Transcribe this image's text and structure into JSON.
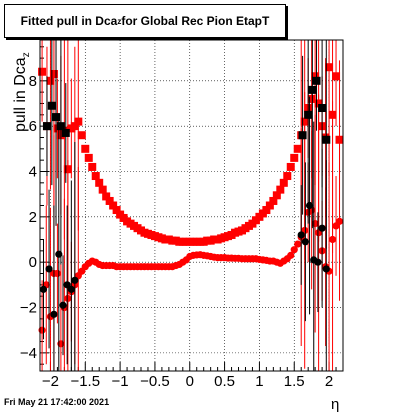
{
  "title": {
    "prefix": "Fitted pull in Dca",
    "sub": "z",
    "suffix": " for Global Rec Pion EtapT"
  },
  "footer": "Fri May 21 17:42:00 2021",
  "chart_data": {
    "type": "scatter",
    "title": "Fitted pull in Dca_z for Global Rec Pion EtapT",
    "xlabel": "η",
    "ylabel": "pull in Dca_z",
    "xlim": [
      -2.15,
      2.2
    ],
    "ylim": [
      -4.8,
      9.8
    ],
    "xticks": [
      -2,
      -1.5,
      -1,
      -0.5,
      0,
      0.5,
      1,
      1.5,
      2
    ],
    "xtick_labels": [
      "−2",
      "−1.5",
      "−1",
      "−0.5",
      "0",
      "0.5",
      "1",
      "1.5",
      "2"
    ],
    "yticks": [
      -4,
      -2,
      0,
      2,
      4,
      6,
      8
    ],
    "ytick_labels": [
      "−4",
      "−2",
      "0",
      "2",
      "4",
      "6",
      "8"
    ],
    "grid": true,
    "colors": {
      "red": "#ff0000",
      "black": "#000000"
    },
    "series": [
      {
        "color": "red",
        "marker": "square",
        "x": [
          -2.12,
          -2.05,
          -2.0,
          -1.95,
          -1.9,
          -1.85,
          -1.8,
          -1.75,
          -1.7,
          -1.65,
          -1.6,
          -1.55,
          -1.5,
          -1.45,
          -1.4,
          -1.35,
          -1.3,
          -1.25,
          -1.2,
          -1.15,
          -1.1,
          -1.05,
          -1.0,
          -0.95,
          -0.9,
          -0.85,
          -0.8,
          -0.75,
          -0.7,
          -0.65,
          -0.6,
          -0.55,
          -0.5,
          -0.45,
          -0.4,
          -0.35,
          -0.3,
          -0.25,
          -0.2,
          -0.15,
          -0.1,
          -0.05,
          0.0,
          0.05,
          0.1,
          0.15,
          0.2,
          0.25,
          0.3,
          0.35,
          0.4,
          0.45,
          0.5,
          0.55,
          0.6,
          0.65,
          0.7,
          0.75,
          0.8,
          0.85,
          0.9,
          0.95,
          1.0,
          1.05,
          1.1,
          1.15,
          1.2,
          1.25,
          1.3,
          1.35,
          1.4,
          1.45,
          1.5,
          1.55,
          1.6,
          1.65,
          1.7,
          1.75,
          1.8,
          1.85,
          1.9,
          1.95,
          2.0,
          2.05,
          2.1,
          2.15
        ],
        "y": [
          8.4,
          6.0,
          8.0,
          8.3,
          5.9,
          5.6,
          5.8,
          4.1,
          5.9,
          6.0,
          6.2,
          5.6,
          5.0,
          4.6,
          4.2,
          3.8,
          3.5,
          3.2,
          2.9,
          2.7,
          2.5,
          2.3,
          2.1,
          1.95,
          1.8,
          1.7,
          1.6,
          1.5,
          1.4,
          1.3,
          1.25,
          1.2,
          1.15,
          1.1,
          1.05,
          1.0,
          1.0,
          0.95,
          0.95,
          0.9,
          0.9,
          0.9,
          0.9,
          0.9,
          0.9,
          0.9,
          0.9,
          0.95,
          0.95,
          1.0,
          1.0,
          1.05,
          1.1,
          1.15,
          1.2,
          1.3,
          1.35,
          1.4,
          1.5,
          1.6,
          1.7,
          1.85,
          2.0,
          2.15,
          2.3,
          2.5,
          2.7,
          2.95,
          3.2,
          3.5,
          3.8,
          4.2,
          4.6,
          5.0,
          5.6,
          6.2,
          6.8,
          7.2,
          8.2,
          7.0,
          6.0,
          5.5,
          8.6,
          6.5,
          8.2,
          5.4
        ]
      },
      {
        "color": "red",
        "marker": "circle",
        "x": [
          -2.12,
          -2.06,
          -2.0,
          -1.95,
          -1.9,
          -1.85,
          -1.8,
          -1.75,
          -1.7,
          -1.65,
          -1.6,
          -1.55,
          -1.5,
          -1.45,
          -1.4,
          -1.35,
          -1.3,
          -1.25,
          -1.2,
          -1.15,
          -1.1,
          -1.05,
          -1.0,
          -0.95,
          -0.9,
          -0.85,
          -0.8,
          -0.75,
          -0.7,
          -0.65,
          -0.6,
          -0.55,
          -0.5,
          -0.45,
          -0.4,
          -0.35,
          -0.3,
          -0.25,
          -0.2,
          -0.15,
          -0.1,
          -0.05,
          0.0,
          0.05,
          0.1,
          0.15,
          0.2,
          0.25,
          0.3,
          0.35,
          0.4,
          0.45,
          0.5,
          0.55,
          0.6,
          0.65,
          0.7,
          0.75,
          0.8,
          0.85,
          0.9,
          0.95,
          1.0,
          1.05,
          1.1,
          1.15,
          1.2,
          1.25,
          1.3,
          1.35,
          1.4,
          1.45,
          1.5,
          1.55,
          1.6,
          1.65,
          1.7,
          1.75,
          1.8,
          1.85,
          1.9,
          1.95,
          2.0,
          2.05,
          2.1,
          2.15
        ],
        "y": [
          -3.0,
          -1.0,
          -2.4,
          -0.5,
          -0.5,
          -3.6,
          -2.0,
          -1.6,
          -1.3,
          -1.0,
          -0.6,
          -0.4,
          -0.2,
          -0.05,
          0.05,
          0.0,
          -0.1,
          -0.15,
          -0.15,
          -0.15,
          -0.15,
          -0.2,
          -0.2,
          -0.2,
          -0.2,
          -0.2,
          -0.2,
          -0.2,
          -0.2,
          -0.2,
          -0.2,
          -0.2,
          -0.2,
          -0.2,
          -0.2,
          -0.2,
          -0.2,
          -0.2,
          -0.15,
          -0.1,
          0.0,
          0.1,
          0.25,
          0.3,
          0.32,
          0.33,
          0.3,
          0.28,
          0.25,
          0.22,
          0.2,
          0.2,
          0.2,
          0.18,
          0.18,
          0.17,
          0.17,
          0.15,
          0.15,
          0.15,
          0.15,
          0.15,
          0.12,
          0.1,
          0.08,
          0.05,
          0.05,
          0.0,
          -0.05,
          0.05,
          0.15,
          0.3,
          0.55,
          0.8,
          1.1,
          1.4,
          2.2,
          2.3,
          1.7,
          1.3,
          0.5,
          -0.2,
          -0.4,
          1.0,
          1.6,
          1.8
        ]
      },
      {
        "color": "black",
        "marker": "circle",
        "x": [
          -2.1,
          -2.02,
          -1.95,
          -1.88,
          -1.82,
          -1.76,
          -1.7,
          -1.65,
          1.6,
          1.66,
          1.72,
          1.78,
          1.84,
          1.9,
          1.96
        ],
        "y": [
          -1.2,
          -0.3,
          -2.3,
          0.35,
          -1.9,
          -1.0,
          -1.2,
          -0.8,
          1.2,
          0.9,
          2.5,
          0.1,
          0.0,
          1.5,
          -0.3
        ]
      },
      {
        "color": "black",
        "marker": "square",
        "x": [
          -2.05,
          -1.98,
          -1.92,
          -1.85,
          -1.78,
          1.62,
          1.7,
          1.76,
          1.82,
          1.9,
          1.96
        ],
        "y": [
          6.0,
          6.9,
          6.4,
          6.0,
          5.7,
          5.6,
          6.5,
          7.6,
          8.0,
          6.8,
          5.4
        ]
      }
    ]
  }
}
